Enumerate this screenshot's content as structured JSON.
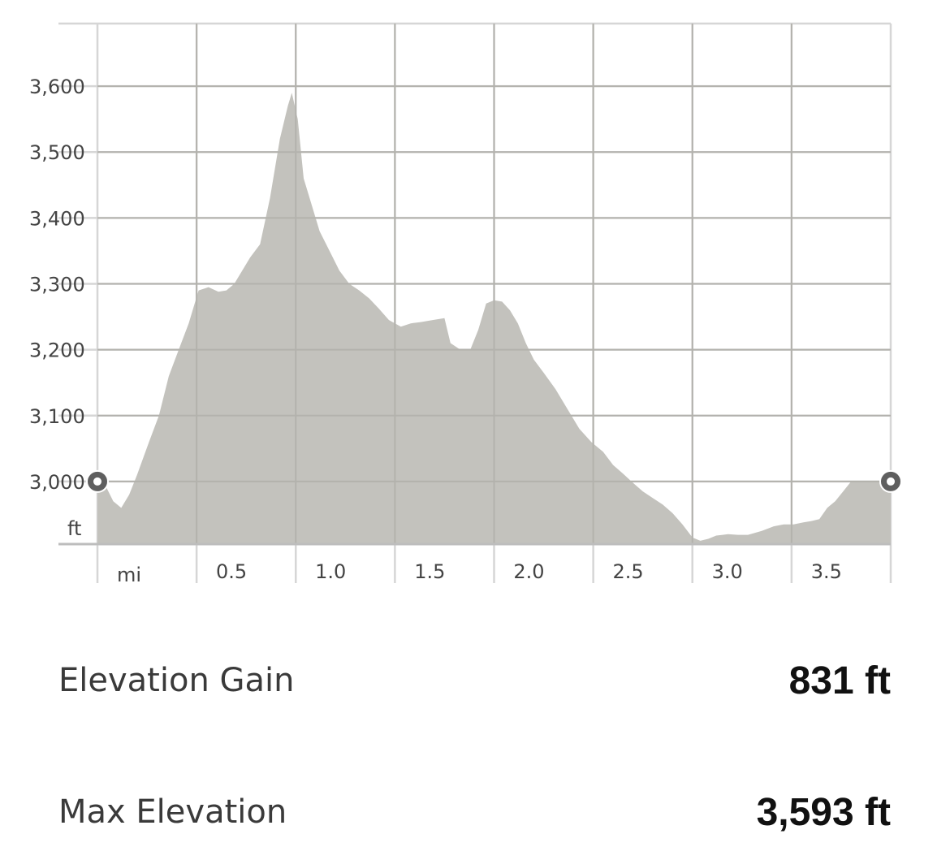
{
  "chart_data": {
    "type": "area",
    "x_unit_label": "mi",
    "y_unit_label": "ft",
    "x_ticks": [
      0.5,
      1.0,
      1.5,
      2.0,
      2.5,
      3.0,
      3.5
    ],
    "x_tick_labels": [
      "0.5",
      "1.0",
      "1.5",
      "2.0",
      "2.5",
      "3.0",
      "3.5"
    ],
    "y_ticks": [
      3000,
      3100,
      3200,
      3300,
      3400,
      3500,
      3600
    ],
    "y_tick_labels": [
      "3,000",
      "3,100",
      "3,200",
      "3,300",
      "3,400",
      "3,500",
      "3,600"
    ],
    "xlim": [
      0,
      4.0
    ],
    "ylim": [
      2905,
      3695
    ],
    "grid": true,
    "fill_color": "#c3c2bd",
    "series": [
      {
        "x": [
          0,
          0.04,
          0.08,
          0.12,
          0.16,
          0.2,
          0.26,
          0.31,
          0.36,
          0.41,
          0.46,
          0.51,
          0.56,
          0.61,
          0.65,
          0.69,
          0.73,
          0.77,
          0.82,
          0.87,
          0.92,
          0.96,
          0.98,
          1.01,
          1.04,
          1.08,
          1.12,
          1.17,
          1.22,
          1.27,
          1.32,
          1.37,
          1.42,
          1.47,
          1.53,
          1.58,
          1.63,
          1.69,
          1.75,
          1.78,
          1.83,
          1.88,
          1.92,
          1.96,
          2.0,
          2.04,
          2.08,
          2.12,
          2.16,
          2.2,
          2.25,
          2.31,
          2.37,
          2.43,
          2.49,
          2.55,
          2.6,
          2.65,
          2.7,
          2.75,
          2.8,
          2.85,
          2.9,
          2.95,
          3.0,
          3.04,
          3.08,
          3.12,
          3.18,
          3.23,
          3.28,
          3.35,
          3.41,
          3.46,
          3.51,
          3.56,
          3.6,
          3.64,
          3.68,
          3.72,
          3.76,
          3.8,
          3.85,
          3.9,
          3.95,
          4.0
        ],
        "y": [
          3000,
          2994,
          2970,
          2960,
          2980,
          3010,
          3060,
          3100,
          3160,
          3200,
          3240,
          3290,
          3295,
          3288,
          3290,
          3300,
          3320,
          3340,
          3360,
          3430,
          3520,
          3570,
          3590,
          3550,
          3460,
          3420,
          3380,
          3350,
          3320,
          3300,
          3290,
          3278,
          3262,
          3245,
          3235,
          3240,
          3242,
          3245,
          3248,
          3210,
          3200,
          3200,
          3230,
          3270,
          3275,
          3273,
          3260,
          3240,
          3210,
          3185,
          3165,
          3140,
          3110,
          3080,
          3060,
          3045,
          3025,
          3012,
          2998,
          2985,
          2975,
          2965,
          2952,
          2935,
          2915,
          2910,
          2913,
          2918,
          2920,
          2919,
          2919,
          2925,
          2932,
          2935,
          2935,
          2938,
          2940,
          2943,
          2960,
          2970,
          2985,
          3000,
          3000,
          3000,
          3000,
          3000
        ]
      }
    ]
  },
  "stats": {
    "elevation_gain": {
      "label": "Elevation Gain",
      "value": "831 ft"
    },
    "max_elevation": {
      "label": "Max Elevation",
      "value": "3,593 ft"
    }
  }
}
